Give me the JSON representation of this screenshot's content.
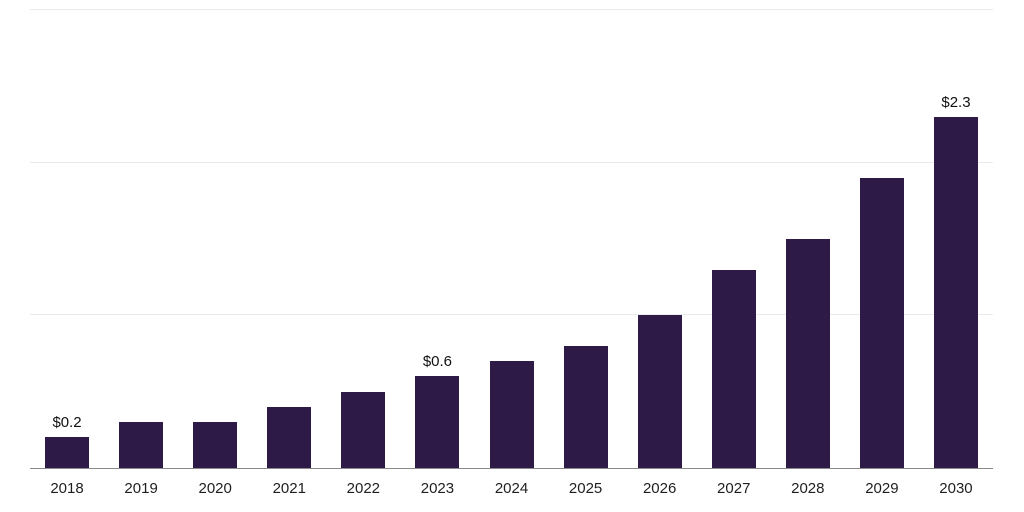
{
  "chart_data": {
    "type": "bar",
    "title": "",
    "xlabel": "",
    "ylabel": "",
    "categories": [
      "2018",
      "2019",
      "2020",
      "2021",
      "2022",
      "2023",
      "2024",
      "2025",
      "2026",
      "2027",
      "2028",
      "2029",
      "2030"
    ],
    "values": [
      0.2,
      0.3,
      0.3,
      0.4,
      0.5,
      0.6,
      0.7,
      0.8,
      1.0,
      1.3,
      1.5,
      1.9,
      2.3
    ],
    "point_labels": [
      "$0.2",
      "",
      "",
      "",
      "",
      "$0.6",
      "",
      "",
      "",
      "",
      "",
      "",
      "$2.3"
    ],
    "ylim": [
      0,
      3
    ],
    "gridline_values": [
      1,
      2,
      3
    ],
    "grid": "horizontal, faint, no y tick labels",
    "legend": "none",
    "bar_color": "#2e1a47",
    "gridline_color": "#ebebeb",
    "axis_line_color": "#8a8a8a",
    "label_color": "#111111"
  }
}
